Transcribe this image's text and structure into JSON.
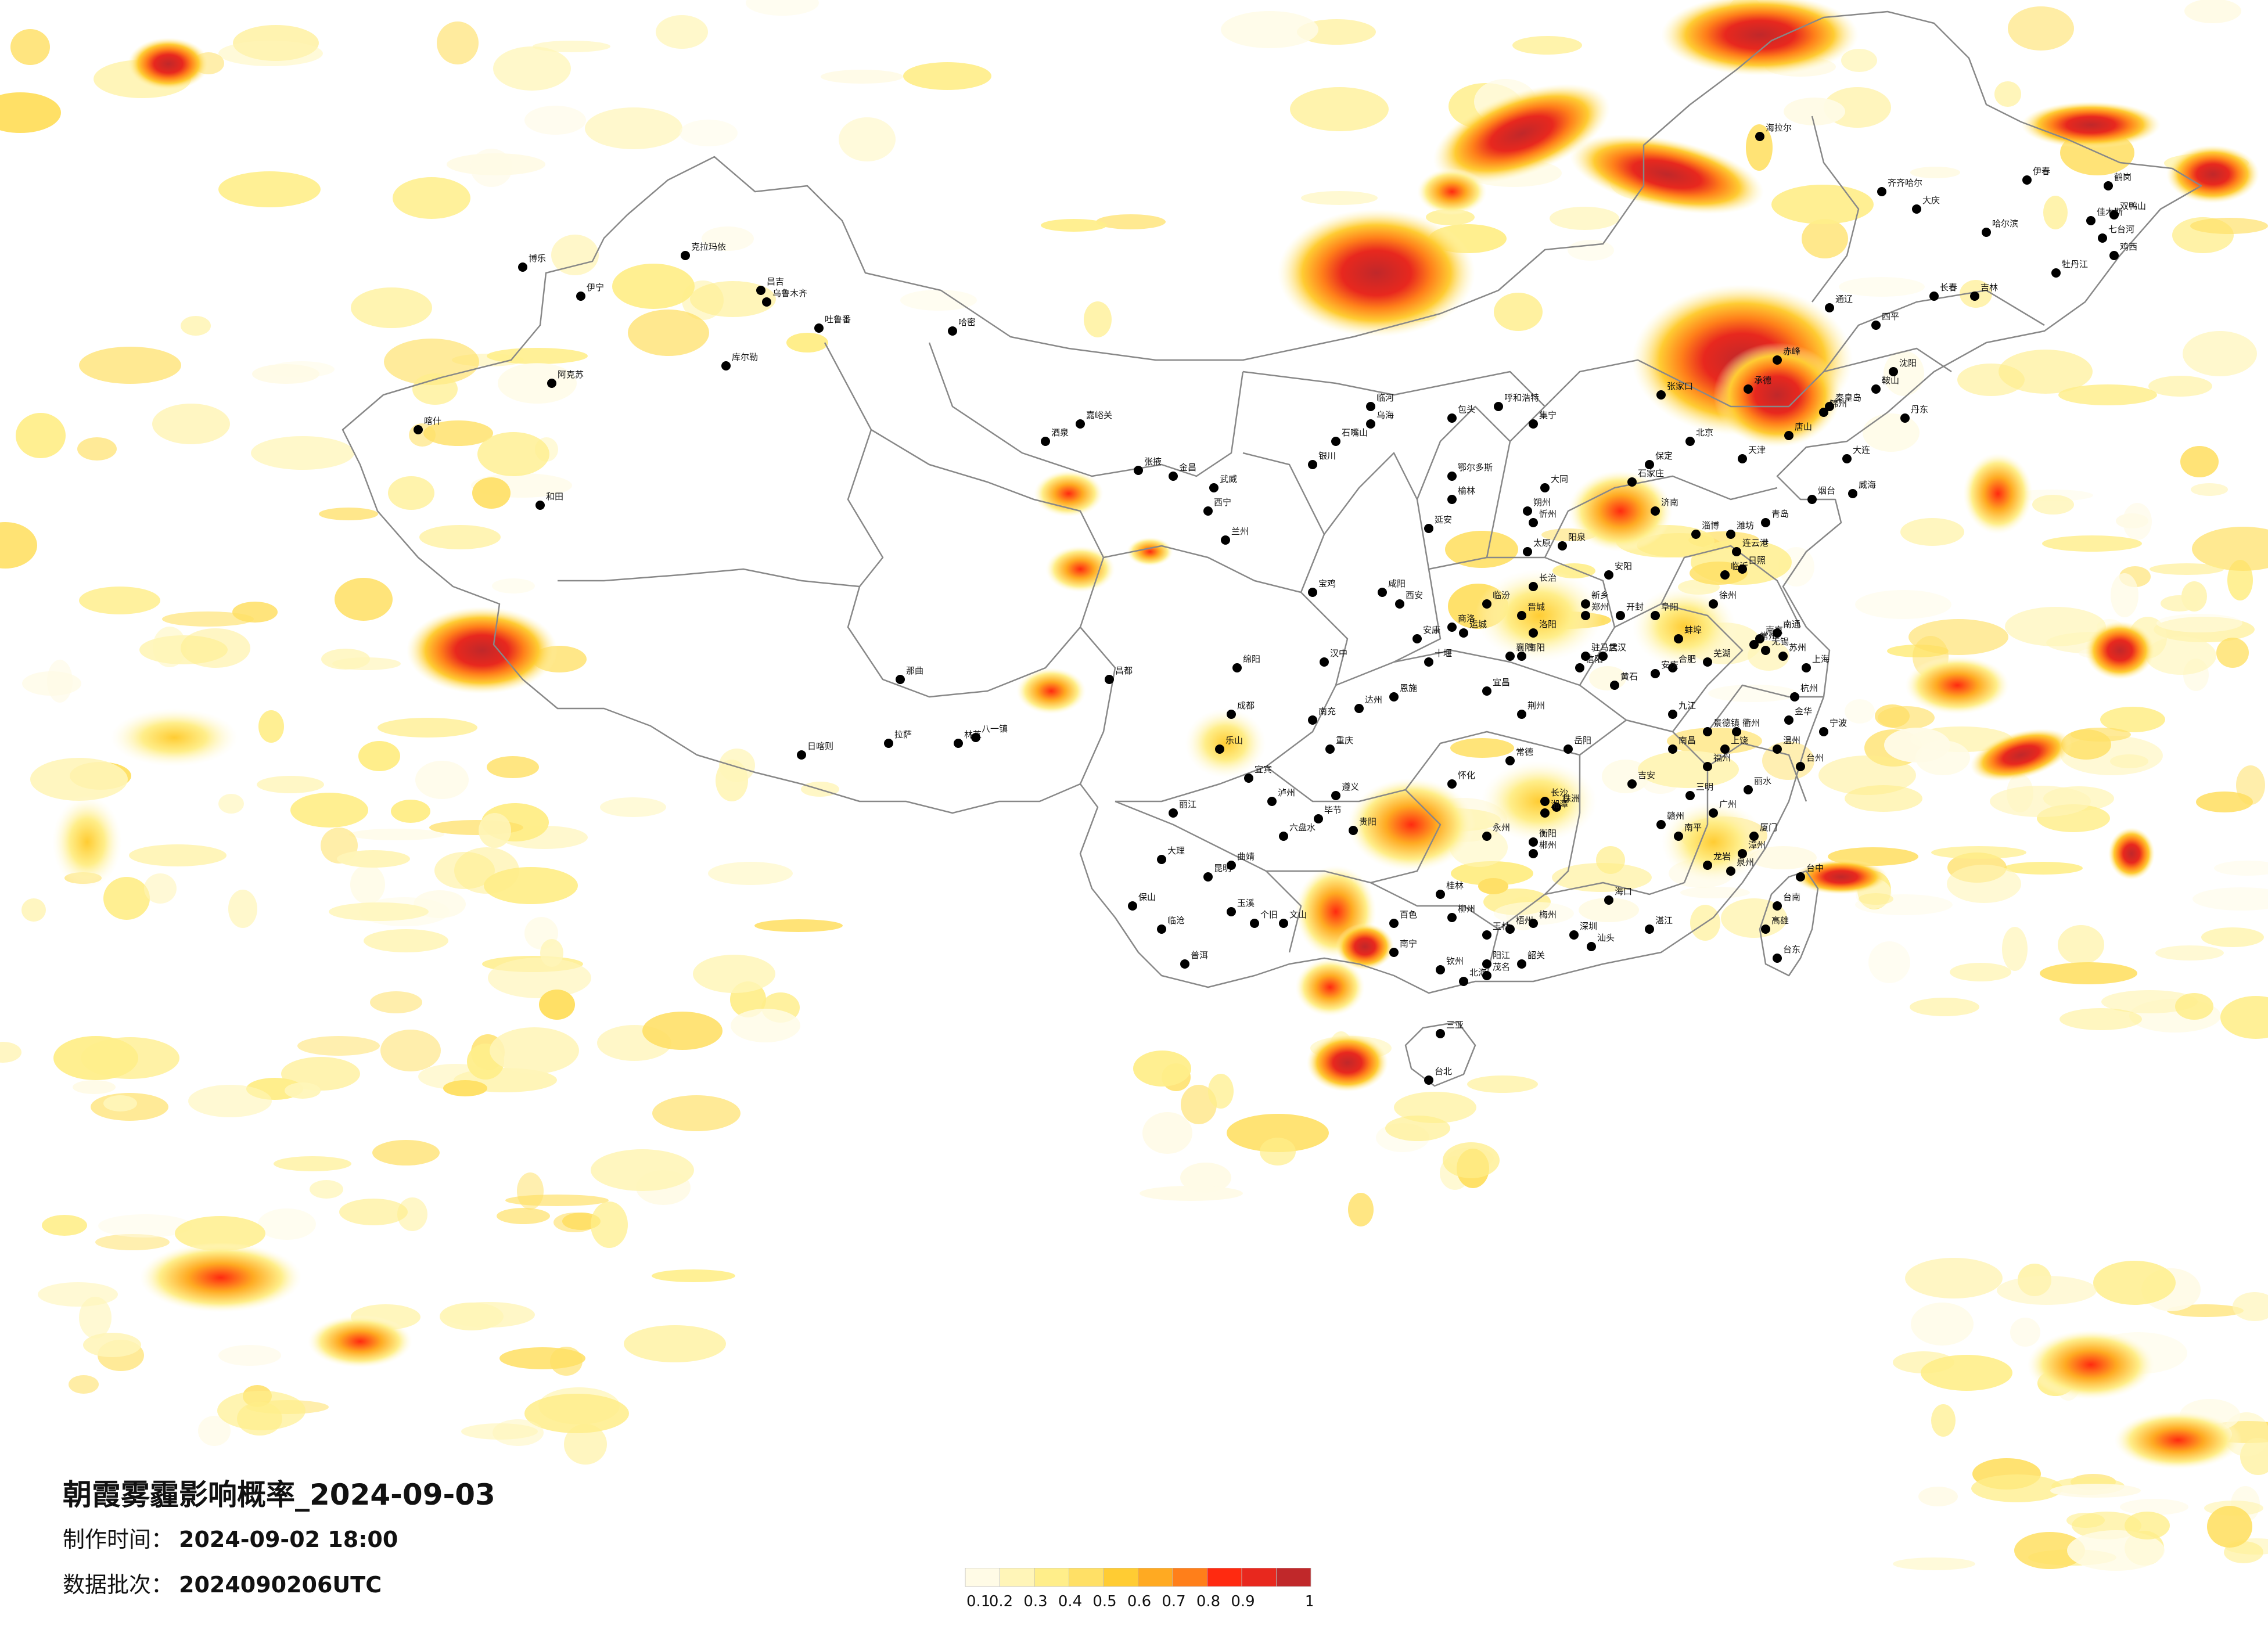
{
  "title": "朝霞雾霾影响概率_2024-09-03",
  "made_time": {
    "label": "制作时间：",
    "value": "2024-09-02 18:00"
  },
  "batch": {
    "label": "数据批次：",
    "value": "2024090206UTC"
  },
  "legend": {
    "ticks": [
      "0.1",
      "0.2",
      "0.3",
      "0.4",
      "0.5",
      "0.6",
      "0.7",
      "0.8",
      "0.9",
      "1"
    ],
    "colors": [
      "#fffbe6",
      "#fff5b8",
      "#ffee8a",
      "#ffe066",
      "#ffcc33",
      "#ffaa22",
      "#ff7f1a",
      "#ff2a10",
      "#e8281e",
      "#c0282a"
    ]
  },
  "blobs": [
    {
      "region": "northeast-inner-mongolia",
      "p": 0.9
    },
    {
      "region": "beijing-tianjin-hebei",
      "p": 0.95
    },
    {
      "region": "mongolia-central",
      "p": 0.95
    },
    {
      "region": "mongolia-east",
      "p": 0.9
    },
    {
      "region": "russia-border-north",
      "p": 0.85
    },
    {
      "region": "heilongjiang-east",
      "p": 0.9
    },
    {
      "region": "kashmir-west",
      "p": 0.95
    },
    {
      "region": "taiwan-east-sea",
      "p": 0.85
    },
    {
      "region": "south-china-sea-north",
      "p": 0.9
    },
    {
      "region": "guangxi-yunnan",
      "p": 0.85
    },
    {
      "region": "bay-of-bengal-north",
      "p": 0.7
    },
    {
      "region": "korea-east",
      "p": 0.85
    },
    {
      "region": "sumatra-west",
      "p": 0.6
    },
    {
      "region": "philippine-sea",
      "p": 0.6
    }
  ],
  "cities": [
    "克拉玛依",
    "乌鲁木齐",
    "哈密",
    "伊宁",
    "喀什",
    "阿克苏",
    "和田",
    "库尔勒",
    "吐鲁番",
    "昌吉",
    "博乐",
    "嘉峪关",
    "酒泉",
    "张掖",
    "金昌",
    "武威",
    "西宁",
    "兰州",
    "银川",
    "石嘴山",
    "乌海",
    "包头",
    "呼和浩特",
    "鄂尔多斯",
    "临河",
    "集宁",
    "海拉尔",
    "齐齐哈尔",
    "大庆",
    "哈尔滨",
    "牡丹江",
    "佳木斯",
    "鹤岗",
    "双鸭山",
    "伊春",
    "七台河",
    "鸡西",
    "长春",
    "吉林",
    "四平",
    "通辽",
    "赤峰",
    "锦州",
    "沈阳",
    "鞍山",
    "大连",
    "丹东",
    "北京",
    "天津",
    "石家庄",
    "保定",
    "唐山",
    "秦皇岛",
    "承德",
    "张家口",
    "太原",
    "大同",
    "朔州",
    "忻州",
    "阳泉",
    "长治",
    "晋城",
    "临汾",
    "运城",
    "济南",
    "青岛",
    "烟台",
    "威海",
    "潍坊",
    "淄博",
    "临沂",
    "日照",
    "郑州",
    "开封",
    "洛阳",
    "新乡",
    "安阳",
    "南阳",
    "信阳",
    "驻马店",
    "西安",
    "咸阳",
    "宝鸡",
    "延安",
    "榆林",
    "汉中",
    "安康",
    "商洛",
    "拉萨",
    "日喀则",
    "林芝",
    "那曲",
    "八一镇",
    "昌都",
    "成都",
    "绵阳",
    "乐山",
    "宜宾",
    "泸州",
    "南充",
    "达州",
    "重庆",
    "贵阳",
    "遵义",
    "六盘水",
    "毕节",
    "昆明",
    "大理",
    "丽江",
    "曲靖",
    "玉溪",
    "保山",
    "临沧",
    "普洱",
    "个旧",
    "文山",
    "南宁",
    "桂林",
    "柳州",
    "梧州",
    "北海",
    "钦州",
    "玉林",
    "百色",
    "长沙",
    "株洲",
    "湘潭",
    "衡阳",
    "岳阳",
    "常德",
    "怀化",
    "永州",
    "郴州",
    "武汉",
    "宜昌",
    "荆州",
    "襄阳",
    "十堰",
    "恩施",
    "黄石",
    "南昌",
    "九江",
    "赣州",
    "吉安",
    "上饶",
    "景德镇",
    "合肥",
    "芜湖",
    "安庆",
    "蚌埠",
    "阜阳",
    "南京",
    "苏州",
    "无锡",
    "常州",
    "徐州",
    "连云港",
    "南通",
    "上海",
    "杭州",
    "宁波",
    "温州",
    "金华",
    "台州",
    "衢州",
    "丽水",
    "福州",
    "厦门",
    "泉州",
    "漳州",
    "龙岩",
    "南平",
    "三明",
    "广州",
    "深圳",
    "汕头",
    "湛江",
    "茂名",
    "阳江",
    "韶关",
    "梅州",
    "海口",
    "三亚",
    "台北",
    "台中",
    "台南",
    "高雄",
    "台东"
  ]
}
